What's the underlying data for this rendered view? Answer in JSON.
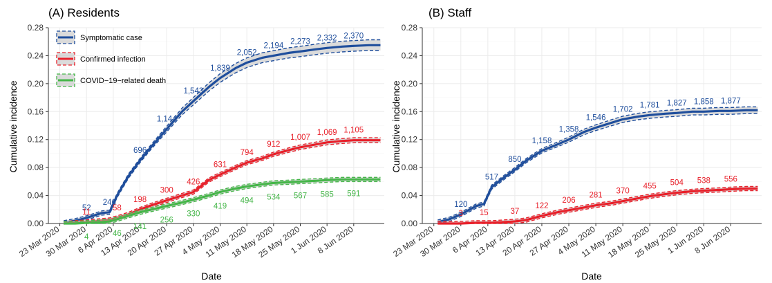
{
  "figure": {
    "x_dates": [
      "2020-03-24",
      "2020-03-27",
      "2020-03-30",
      "2020-04-03",
      "2020-04-05",
      "2020-04-07",
      "2020-04-10",
      "2020-04-13",
      "2020-04-16",
      "2020-04-20",
      "2020-04-24",
      "2020-04-27",
      "2020-05-01",
      "2020-05-04",
      "2020-05-08",
      "2020-05-11",
      "2020-05-15",
      "2020-05-18",
      "2020-05-22",
      "2020-05-25",
      "2020-05-29",
      "2020-06-01",
      "2020-06-05",
      "2020-06-08",
      "2020-06-12",
      "2020-06-15"
    ],
    "x_tick_labels": [
      "23 Mar 2020",
      "30 Mar 2020",
      "6 Apr 2020",
      "13 Apr 2020",
      "20 Apr 2020",
      "27 Apr 2020",
      "4 May 2020",
      "11 May 2020",
      "18 May 2020",
      "25 May 2020",
      "1 Jun 2020",
      "8 Jun 2020"
    ],
    "y_tick_labels": [
      "0.00",
      "0.04",
      "0.08",
      "0.12",
      "0.16",
      "0.20",
      "0.24",
      "0.28"
    ],
    "colors": {
      "blue": "#1f4e9c",
      "red": "#e8202a",
      "green": "#45b649",
      "band": "#d3d3d3",
      "grid": "#ebebeb"
    }
  },
  "chart_data": [
    {
      "type": "line",
      "title": "(A) Residents",
      "xlabel": "Date",
      "ylabel": "Cumulative incidence",
      "ylim": [
        0,
        0.28
      ],
      "grid": true,
      "legend_position": "top-left",
      "series": [
        {
          "name": "Symptomatic case",
          "color": "#1f4e9c",
          "values": [
            0.001,
            0.004,
            0.008,
            0.015,
            0.016,
            0.04,
            0.068,
            0.09,
            0.11,
            0.135,
            0.16,
            0.175,
            0.195,
            0.208,
            0.222,
            0.23,
            0.237,
            0.24,
            0.244,
            0.246,
            0.249,
            0.251,
            0.253,
            0.254,
            0.255,
            0.255
          ],
          "labels": [
            {
              "date": "2020-03-30",
              "y": 0.008,
              "text": "52"
            },
            {
              "date": "2020-04-05",
              "y": 0.016,
              "text": "246"
            },
            {
              "date": "2020-04-13",
              "y": 0.09,
              "text": "696"
            },
            {
              "date": "2020-04-20",
              "y": 0.135,
              "text": "1,144"
            },
            {
              "date": "2020-04-27",
              "y": 0.175,
              "text": "1,543"
            },
            {
              "date": "2020-05-04",
              "y": 0.208,
              "text": "1,839"
            },
            {
              "date": "2020-05-11",
              "y": 0.23,
              "text": "2,052"
            },
            {
              "date": "2020-05-18",
              "y": 0.24,
              "text": "2,194"
            },
            {
              "date": "2020-05-25",
              "y": 0.246,
              "text": "2,273"
            },
            {
              "date": "2020-06-01",
              "y": 0.251,
              "text": "2,332"
            },
            {
              "date": "2020-06-08",
              "y": 0.254,
              "text": "2,370"
            }
          ]
        },
        {
          "name": "Confirmed infection",
          "color": "#e8202a",
          "values": [
            0.0,
            0.001,
            0.002,
            0.004,
            0.005,
            0.008,
            0.013,
            0.02,
            0.026,
            0.033,
            0.04,
            0.045,
            0.062,
            0.07,
            0.08,
            0.087,
            0.093,
            0.099,
            0.105,
            0.109,
            0.113,
            0.116,
            0.118,
            0.119,
            0.119,
            0.119
          ],
          "labels": [
            {
              "date": "2020-03-30",
              "y": 0.002,
              "text": "11"
            },
            {
              "date": "2020-04-07",
              "y": 0.008,
              "text": "58"
            },
            {
              "date": "2020-04-13",
              "y": 0.02,
              "text": "198"
            },
            {
              "date": "2020-04-20",
              "y": 0.033,
              "text": "300"
            },
            {
              "date": "2020-04-27",
              "y": 0.045,
              "text": "426"
            },
            {
              "date": "2020-05-04",
              "y": 0.07,
              "text": "631"
            },
            {
              "date": "2020-05-11",
              "y": 0.087,
              "text": "794"
            },
            {
              "date": "2020-05-18",
              "y": 0.099,
              "text": "912"
            },
            {
              "date": "2020-05-25",
              "y": 0.109,
              "text": "1,007"
            },
            {
              "date": "2020-06-01",
              "y": 0.116,
              "text": "1,069"
            },
            {
              "date": "2020-06-08",
              "y": 0.119,
              "text": "1,105"
            }
          ]
        },
        {
          "name": "COVID−19−related death",
          "color": "#45b649",
          "values": [
            0.0,
            0.0,
            0.001,
            0.002,
            0.003,
            0.006,
            0.011,
            0.016,
            0.02,
            0.025,
            0.03,
            0.034,
            0.04,
            0.045,
            0.05,
            0.053,
            0.056,
            0.058,
            0.059,
            0.06,
            0.061,
            0.062,
            0.063,
            0.063,
            0.063,
            0.063
          ],
          "labels": [
            {
              "date": "2020-03-30",
              "y": 0.001,
              "text": "4"
            },
            {
              "date": "2020-04-07",
              "y": 0.006,
              "text": "46"
            },
            {
              "date": "2020-04-13",
              "y": 0.016,
              "text": "141"
            },
            {
              "date": "2020-04-20",
              "y": 0.025,
              "text": "256"
            },
            {
              "date": "2020-04-27",
              "y": 0.034,
              "text": "330"
            },
            {
              "date": "2020-05-04",
              "y": 0.045,
              "text": "419"
            },
            {
              "date": "2020-05-11",
              "y": 0.053,
              "text": "494"
            },
            {
              "date": "2020-05-18",
              "y": 0.058,
              "text": "534"
            },
            {
              "date": "2020-05-25",
              "y": 0.06,
              "text": "567"
            },
            {
              "date": "2020-06-01",
              "y": 0.062,
              "text": "585"
            },
            {
              "date": "2020-06-08",
              "y": 0.063,
              "text": "591"
            }
          ]
        }
      ]
    },
    {
      "type": "line",
      "title": "(B) Staff",
      "xlabel": "Date",
      "ylabel": "Cumulative incidence",
      "ylim": [
        0,
        0.28
      ],
      "grid": true,
      "series": [
        {
          "name": "Symptomatic case",
          "color": "#1f4e9c",
          "values": [
            0.002,
            0.006,
            0.013,
            0.025,
            0.028,
            0.052,
            0.065,
            0.077,
            0.09,
            0.104,
            0.113,
            0.12,
            0.131,
            0.137,
            0.144,
            0.149,
            0.153,
            0.155,
            0.157,
            0.158,
            0.16,
            0.16,
            0.161,
            0.161,
            0.162,
            0.162
          ],
          "labels": [
            {
              "date": "2020-03-30",
              "y": 0.013,
              "text": "120"
            },
            {
              "date": "2020-04-07",
              "y": 0.052,
              "text": "517"
            },
            {
              "date": "2020-04-13",
              "y": 0.077,
              "text": "850"
            },
            {
              "date": "2020-04-20",
              "y": 0.104,
              "text": "1,158"
            },
            {
              "date": "2020-04-27",
              "y": 0.12,
              "text": "1,358"
            },
            {
              "date": "2020-05-04",
              "y": 0.137,
              "text": "1,546"
            },
            {
              "date": "2020-05-11",
              "y": 0.149,
              "text": "1,702"
            },
            {
              "date": "2020-05-18",
              "y": 0.155,
              "text": "1,781"
            },
            {
              "date": "2020-05-25",
              "y": 0.158,
              "text": "1,827"
            },
            {
              "date": "2020-06-01",
              "y": 0.16,
              "text": "1,858"
            },
            {
              "date": "2020-06-08",
              "y": 0.161,
              "text": "1,877"
            }
          ]
        },
        {
          "name": "Confirmed infection",
          "color": "#e8202a",
          "values": [
            0.0,
            0.0,
            0.0,
            0.001,
            0.001,
            0.001,
            0.002,
            0.003,
            0.005,
            0.011,
            0.016,
            0.019,
            0.023,
            0.026,
            0.029,
            0.032,
            0.036,
            0.039,
            0.042,
            0.044,
            0.046,
            0.047,
            0.048,
            0.049,
            0.05,
            0.05
          ],
          "labels": [
            {
              "date": "2020-03-30",
              "y": 0.0,
              "text": "3"
            },
            {
              "date": "2020-04-05",
              "y": 0.001,
              "text": "15"
            },
            {
              "date": "2020-04-13",
              "y": 0.003,
              "text": "37"
            },
            {
              "date": "2020-04-20",
              "y": 0.011,
              "text": "122"
            },
            {
              "date": "2020-04-27",
              "y": 0.019,
              "text": "206"
            },
            {
              "date": "2020-05-04",
              "y": 0.026,
              "text": "281"
            },
            {
              "date": "2020-05-11",
              "y": 0.032,
              "text": "370"
            },
            {
              "date": "2020-05-18",
              "y": 0.039,
              "text": "455"
            },
            {
              "date": "2020-05-25",
              "y": 0.044,
              "text": "504"
            },
            {
              "date": "2020-06-01",
              "y": 0.047,
              "text": "538"
            },
            {
              "date": "2020-06-08",
              "y": 0.049,
              "text": "556"
            }
          ]
        }
      ]
    }
  ]
}
